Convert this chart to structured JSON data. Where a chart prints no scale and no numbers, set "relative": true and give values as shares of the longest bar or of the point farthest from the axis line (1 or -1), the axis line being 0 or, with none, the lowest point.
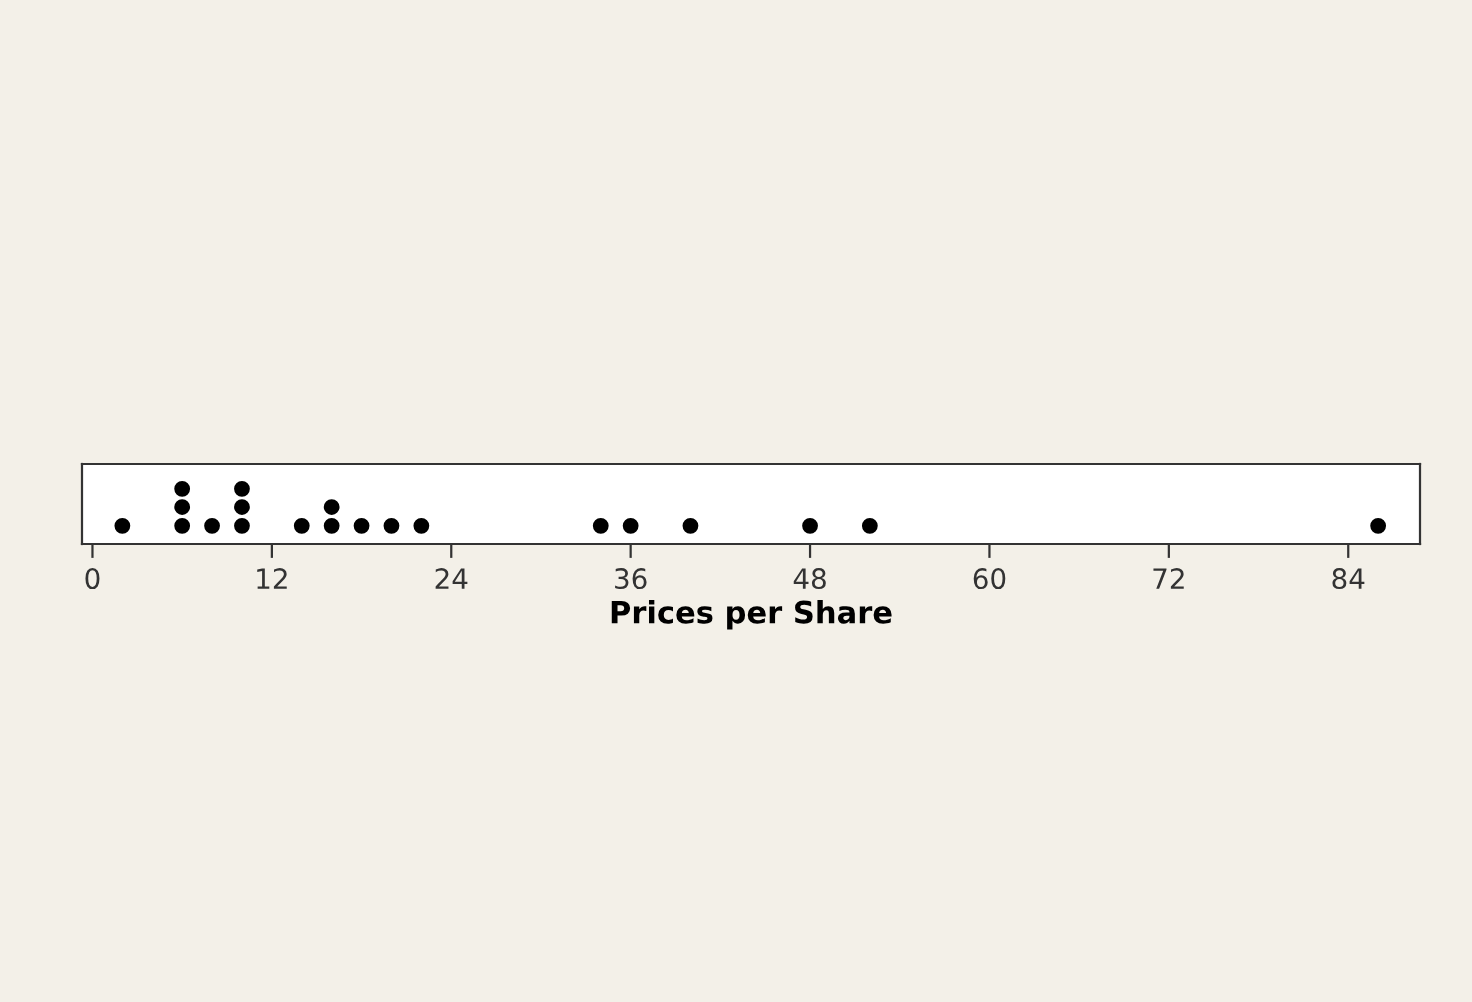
{
  "chart_data": {
    "type": "scatter",
    "xlabel": "Prices per Share",
    "x": [
      2,
      6,
      6,
      6,
      8,
      10,
      10,
      10,
      14,
      16,
      16,
      18,
      20,
      22,
      34,
      36,
      40,
      48,
      52,
      86
    ],
    "series": [
      {
        "color": "#000000",
        "values": [
          0.33,
          0.33,
          0.67,
          1,
          0.33,
          0.33,
          0.67,
          1,
          0.33,
          0.33,
          0.67,
          0.33,
          0.33,
          0.33,
          0.33,
          0.33,
          0.33,
          0.33,
          0.33,
          0.33
        ]
      }
    ],
    "xlim": [
      -0.7,
      88.8
    ],
    "xticks": [
      0,
      12,
      24,
      36,
      48,
      60,
      72,
      84
    ],
    "relative": true,
    "tick_labels": "x",
    "marker": "circle",
    "grid": false,
    "legend": false
  }
}
